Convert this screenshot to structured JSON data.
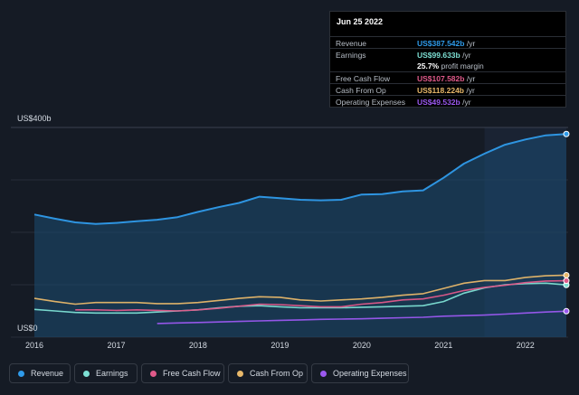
{
  "tooltip": {
    "date": "Jun 25 2022",
    "rows": [
      {
        "label": "Revenue",
        "value": "US$387.542b",
        "unit": "/yr",
        "color": "#2f9bea"
      },
      {
        "label": "Earnings",
        "value": "US$99.633b",
        "unit": "/yr",
        "color": "#7de0d4"
      },
      {
        "label": "",
        "value": "25.7%",
        "unit": "profit margin",
        "color": "#ffffff"
      },
      {
        "label": "Free Cash Flow",
        "value": "US$107.582b",
        "unit": "/yr",
        "color": "#e05a8a"
      },
      {
        "label": "Cash From Op",
        "value": "US$118.224b",
        "unit": "/yr",
        "color": "#e8b86a"
      },
      {
        "label": "Operating Expenses",
        "value": "US$49.532b",
        "unit": "/yr",
        "color": "#9b59f0"
      }
    ]
  },
  "legend": [
    {
      "label": "Revenue",
      "color": "#2f9bea"
    },
    {
      "label": "Earnings",
      "color": "#7de0d4"
    },
    {
      "label": "Free Cash Flow",
      "color": "#e05a8a"
    },
    {
      "label": "Cash From Op",
      "color": "#e8b86a"
    },
    {
      "label": "Operating Expenses",
      "color": "#9b59f0"
    }
  ],
  "chart_data": {
    "type": "line",
    "ylabel_top": "US$400b",
    "ylabel_bottom": "US$0",
    "ylim": [
      0,
      400
    ],
    "xlim": [
      2016.0,
      2022.5
    ],
    "x_ticks": [
      "2016",
      "2017",
      "2018",
      "2019",
      "2020",
      "2021",
      "2022"
    ],
    "grid": true,
    "series": [
      {
        "name": "Revenue",
        "color": "#2f9bea",
        "area": true,
        "x": [
          2016.0,
          2016.25,
          2016.5,
          2016.75,
          2017.0,
          2017.25,
          2017.5,
          2017.75,
          2018.0,
          2018.25,
          2018.5,
          2018.75,
          2019.0,
          2019.25,
          2019.5,
          2019.75,
          2020.0,
          2020.25,
          2020.5,
          2020.75,
          2021.0,
          2021.25,
          2021.5,
          2021.75,
          2022.0,
          2022.25,
          2022.5
        ],
        "y": [
          234,
          226,
          219,
          216,
          218,
          221,
          224,
          229,
          239,
          248,
          256,
          268,
          265,
          262,
          261,
          262,
          272,
          273,
          278,
          280,
          304,
          331,
          350,
          367,
          377,
          385,
          387.5
        ]
      },
      {
        "name": "Earnings",
        "color": "#7de0d4",
        "x": [
          2016.0,
          2016.25,
          2016.5,
          2016.75,
          2017.0,
          2017.25,
          2017.5,
          2017.75,
          2018.0,
          2018.25,
          2018.5,
          2018.75,
          2019.0,
          2019.25,
          2019.5,
          2019.75,
          2020.0,
          2020.25,
          2020.5,
          2020.75,
          2021.0,
          2021.25,
          2021.5,
          2021.75,
          2022.0,
          2022.25,
          2022.5
        ],
        "y": [
          53,
          50,
          47,
          46,
          46,
          46,
          48,
          50,
          52,
          56,
          59,
          60,
          58,
          56,
          56,
          56,
          57,
          58,
          59,
          60,
          68,
          84,
          94,
          100,
          102,
          103,
          99.6
        ]
      },
      {
        "name": "Free Cash Flow",
        "color": "#e05a8a",
        "x": [
          2016.5,
          2016.75,
          2017.0,
          2017.25,
          2017.5,
          2017.75,
          2018.0,
          2018.25,
          2018.5,
          2018.75,
          2019.0,
          2019.25,
          2019.5,
          2019.75,
          2020.0,
          2020.25,
          2020.5,
          2020.75,
          2021.0,
          2021.25,
          2021.5,
          2021.75,
          2022.0,
          2022.25,
          2022.5
        ],
        "y": [
          52,
          52,
          51,
          52,
          51,
          50,
          52,
          55,
          59,
          63,
          62,
          60,
          58,
          58,
          63,
          66,
          71,
          73,
          80,
          89,
          95,
          99,
          104,
          107,
          107.6
        ]
      },
      {
        "name": "Cash From Op",
        "color": "#e8b86a",
        "x": [
          2016.0,
          2016.25,
          2016.5,
          2016.75,
          2017.0,
          2017.25,
          2017.5,
          2017.75,
          2018.0,
          2018.25,
          2018.5,
          2018.75,
          2019.0,
          2019.25,
          2019.5,
          2019.75,
          2020.0,
          2020.25,
          2020.5,
          2020.75,
          2021.0,
          2021.25,
          2021.5,
          2021.75,
          2022.0,
          2022.25,
          2022.5
        ],
        "y": [
          74,
          68,
          63,
          66,
          66,
          66,
          64,
          64,
          66,
          70,
          74,
          77,
          76,
          71,
          69,
          71,
          73,
          76,
          80,
          83,
          93,
          103,
          108,
          108,
          114,
          117,
          118.2
        ]
      },
      {
        "name": "Operating Expenses",
        "color": "#9b59f0",
        "x": [
          2017.5,
          2017.75,
          2018.0,
          2018.25,
          2018.5,
          2018.75,
          2019.0,
          2019.25,
          2019.5,
          2019.75,
          2020.0,
          2020.25,
          2020.5,
          2020.75,
          2021.0,
          2021.25,
          2021.5,
          2021.75,
          2022.0,
          2022.25,
          2022.5
        ],
        "y": [
          26,
          27,
          28,
          29,
          30,
          31,
          32,
          33,
          34,
          34.5,
          35,
          36,
          37,
          38,
          40,
          41,
          42,
          44,
          46,
          48,
          49.5
        ]
      }
    ]
  }
}
